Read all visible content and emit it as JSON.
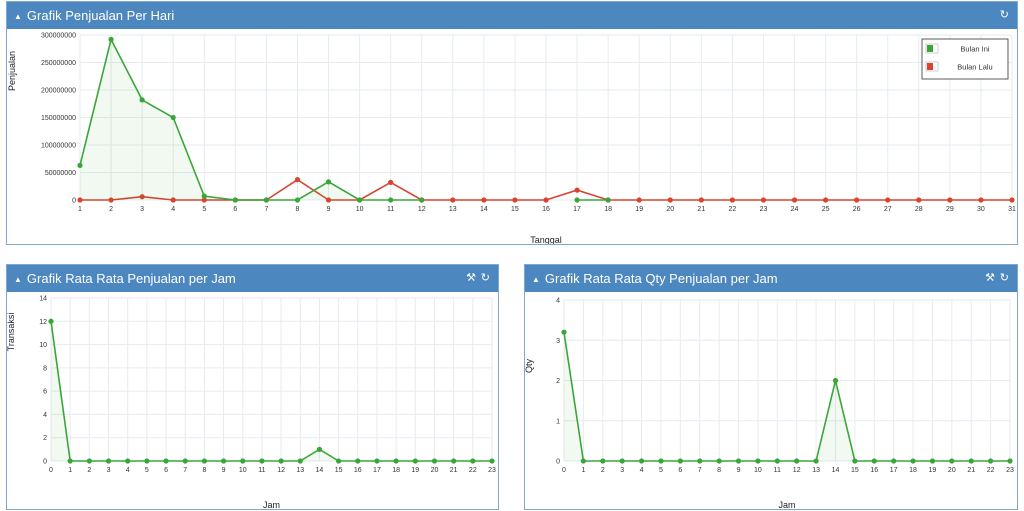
{
  "colors": {
    "header": "#4d87bf",
    "bulan_ini": "#3aa63a",
    "bulan_lalu": "#d9432f",
    "grid": "#e6ebf0"
  },
  "icons": {
    "collapse": "chevron-up-icon",
    "refresh": "refresh-icon",
    "settings": "wrench-icon"
  },
  "daily": {
    "title": "Grafik Penjualan Per Hari",
    "chart_data": {
      "type": "line",
      "xlabel": "Tanggal",
      "ylabel": "Penjualan",
      "y_ticks": [
        "0",
        "50000000",
        "100000000",
        "150000000",
        "200000000",
        "250000000",
        "300000000"
      ],
      "ylim": [
        0,
        300000000
      ],
      "grid": true,
      "legend_position": "top-right",
      "categories": [
        "1",
        "2",
        "3",
        "4",
        "5",
        "6",
        "7",
        "8",
        "9",
        "10",
        "11",
        "12",
        "13",
        "14",
        "15",
        "16",
        "17",
        "18",
        "19",
        "20",
        "21",
        "22",
        "23",
        "24",
        "25",
        "26",
        "27",
        "28",
        "29",
        "30",
        "31"
      ],
      "series": [
        {
          "name": "Bulan Ini",
          "color": "#3aa63a",
          "fill": true,
          "values": [
            63000000,
            292000000,
            182000000,
            150000000,
            7000000,
            0,
            0,
            0,
            33000000,
            0,
            0,
            0,
            null,
            null,
            null,
            null,
            0,
            0,
            null,
            null,
            null,
            null,
            null,
            null,
            null,
            null,
            null,
            null,
            null,
            null,
            null
          ]
        },
        {
          "name": "Bulan Lalu",
          "color": "#d9432f",
          "fill": false,
          "values": [
            0,
            0,
            6000000,
            0,
            0,
            0,
            0,
            37000000,
            0,
            0,
            32000000,
            0,
            0,
            0,
            0,
            0,
            18000000,
            0,
            0,
            0,
            0,
            0,
            0,
            0,
            0,
            0,
            0,
            0,
            0,
            0,
            0
          ]
        }
      ]
    }
  },
  "hourly_avg": {
    "title": "Grafik Rata Rata Penjualan per Jam",
    "chart_data": {
      "type": "line",
      "xlabel": "Jam",
      "ylabel": "Transaksi",
      "y_ticks": [
        "0",
        "2",
        "4",
        "6",
        "8",
        "10",
        "12",
        "14"
      ],
      "ylim": [
        0,
        14
      ],
      "grid": true,
      "categories": [
        "0",
        "1",
        "2",
        "3",
        "4",
        "5",
        "6",
        "7",
        "8",
        "9",
        "10",
        "11",
        "12",
        "13",
        "14",
        "15",
        "16",
        "17",
        "18",
        "19",
        "20",
        "21",
        "22",
        "23"
      ],
      "series": [
        {
          "color": "#3aa63a",
          "fill": true,
          "values": [
            12,
            0,
            0,
            0,
            0,
            0,
            0,
            0,
            0,
            0,
            0,
            0,
            0,
            0,
            1,
            0,
            0,
            0,
            0,
            0,
            0,
            0,
            0,
            0
          ]
        }
      ]
    }
  },
  "hourly_qty": {
    "title": "Grafik Rata Rata Qty Penjualan per Jam",
    "chart_data": {
      "type": "line",
      "xlabel": "Jam",
      "ylabel": "Qty",
      "y_ticks": [
        "0",
        "1",
        "2",
        "3",
        "4"
      ],
      "ylim": [
        0,
        4
      ],
      "grid": true,
      "categories": [
        "0",
        "1",
        "2",
        "3",
        "4",
        "5",
        "6",
        "7",
        "8",
        "9",
        "10",
        "11",
        "12",
        "13",
        "14",
        "15",
        "16",
        "17",
        "18",
        "19",
        "20",
        "21",
        "22",
        "23"
      ],
      "series": [
        {
          "color": "#3aa63a",
          "fill": true,
          "values": [
            3.2,
            0,
            0,
            0,
            0,
            0,
            0,
            0,
            0,
            0,
            0,
            0,
            0,
            0,
            2,
            0,
            0,
            0,
            0,
            0,
            0,
            0,
            0,
            0
          ]
        }
      ]
    }
  }
}
